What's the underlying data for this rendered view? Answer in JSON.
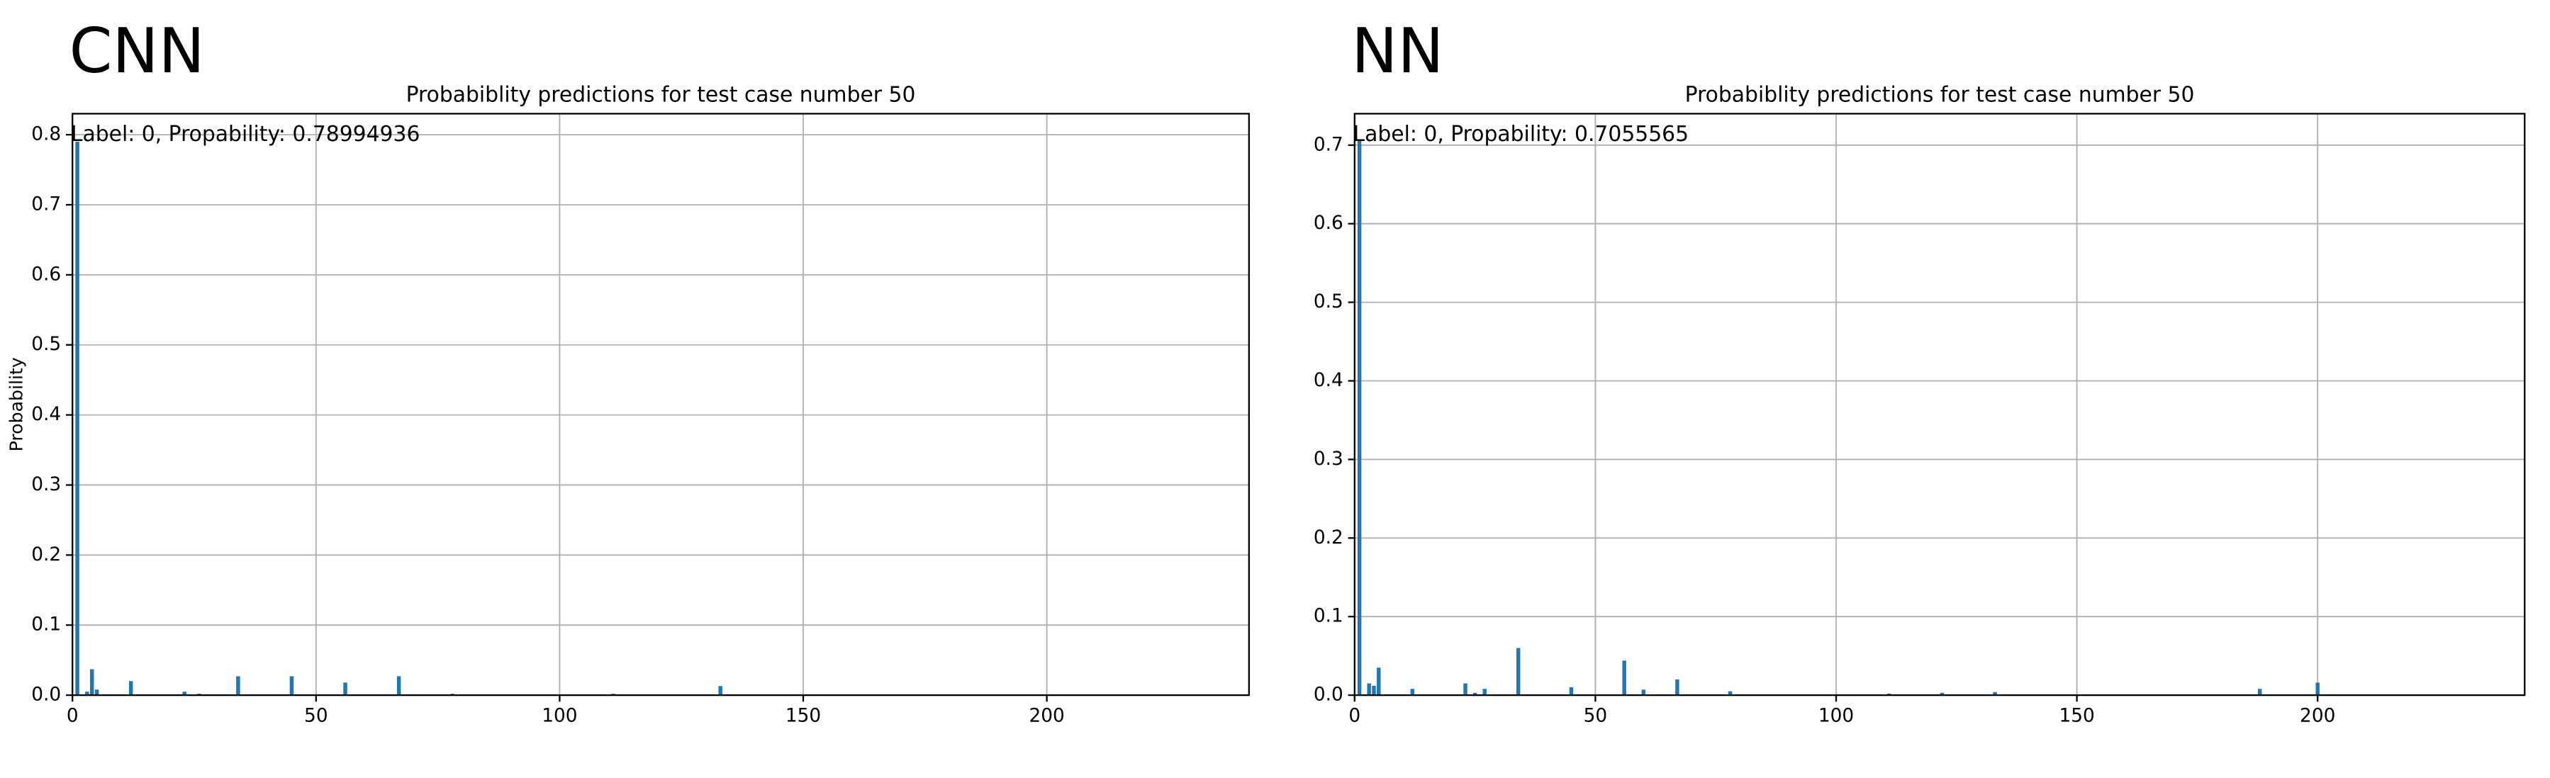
{
  "chart_data": [
    {
      "type": "bar",
      "heading": "CNN",
      "title": "Probabiblity predictions for test case number 50",
      "ylabel": "Probability",
      "annotation": "Label: 0, Propability: 0.78994936",
      "color": "#1f77b4",
      "grid": true,
      "x": [
        1,
        3,
        4,
        5,
        12,
        23,
        26,
        34,
        45,
        56,
        67,
        78,
        111,
        133,
        188,
        220
      ],
      "values": [
        0.78994936,
        0.005,
        0.037,
        0.008,
        0.02,
        0.005,
        0.002,
        0.027,
        0.027,
        0.018,
        0.027,
        0.002,
        0.002,
        0.013,
        0.001,
        0.001
      ],
      "xlim": [
        0,
        241.5
      ],
      "ylim": [
        0,
        0.83
      ],
      "xticks": [
        0,
        50,
        100,
        150,
        200
      ],
      "yticks": [
        {
          "value": 0,
          "label": "0.0"
        },
        0.1,
        0.2,
        0.3,
        0.4,
        0.5,
        0.6,
        0.7,
        0.8
      ]
    },
    {
      "type": "bar",
      "heading": "NN",
      "title": "Probabiblity predictions for test case number 50",
      "annotation": "Label: 0, Propability: 0.7055565",
      "color": "#1f77b4",
      "grid": true,
      "x": [
        1,
        3,
        4,
        5,
        12,
        23,
        25,
        27,
        34,
        45,
        56,
        60,
        67,
        78,
        111,
        122,
        133,
        188,
        200
      ],
      "values": [
        0.7055565,
        0.015,
        0.012,
        0.035,
        0.008,
        0.015,
        0.003,
        0.008,
        0.06,
        0.01,
        0.044,
        0.007,
        0.02,
        0.005,
        0.002,
        0.003,
        0.004,
        0.008,
        0.016
      ],
      "xlim": [
        0,
        243
      ],
      "ylim": [
        0,
        0.74
      ],
      "xticks": [
        0,
        50,
        100,
        150,
        200
      ],
      "yticks": [
        {
          "value": 0,
          "label": "0.0"
        },
        0.1,
        0.2,
        0.3,
        0.4,
        0.5,
        0.6,
        0.7
      ]
    }
  ]
}
